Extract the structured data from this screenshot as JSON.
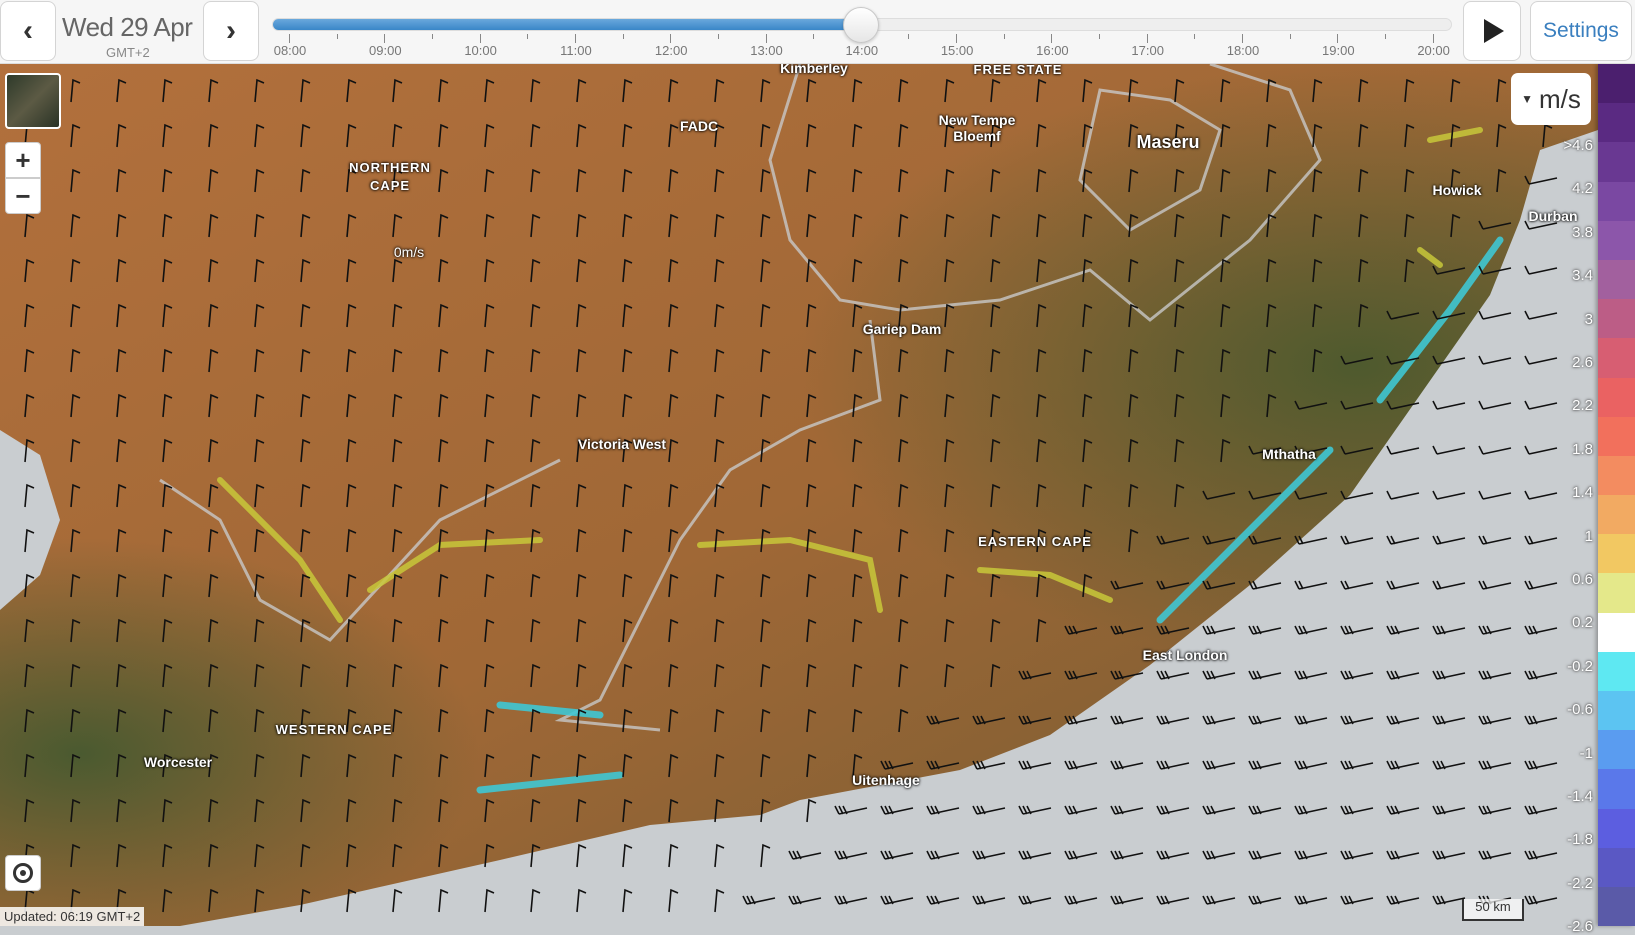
{
  "header": {
    "date": "Wed 29 Apr",
    "timezone": "GMT+2",
    "prev_icon": "chevron-left-icon",
    "next_icon": "chevron-right-icon",
    "times": [
      "08:00",
      "09:00",
      "10:00",
      "11:00",
      "12:00",
      "13:00",
      "14:00",
      "15:00",
      "16:00",
      "17:00",
      "18:00",
      "19:00",
      "20:00"
    ],
    "current_time": "14:00",
    "play_icon": "play-icon",
    "settings_label": "Settings"
  },
  "map": {
    "labels": {
      "kimberley": "Kimberley",
      "free_state": "FREE STATE",
      "fadc": "FADC",
      "northern_cape_1": "NORTHERN",
      "northern_cape_2": "CAPE",
      "new_tempe": "New Tempe",
      "bloemf": "Bloemf",
      "maseru": "Maseru",
      "howick": "Howick",
      "durban": "Durban",
      "zero": "0m/s",
      "gariep": "Gariep Dam",
      "victoria_west": "Victoria West",
      "mthatha": "Mthatha",
      "eastern_cape": "EASTERN CAPE",
      "east_london": "East London",
      "western_cape": "WESTERN CAPE",
      "worcester": "Worcester",
      "uitenhage": "Uitenhage"
    },
    "zoom_in": "+",
    "zoom_out": "−",
    "updated": "Updated: 06:19 GMT+2",
    "scale": "50 km"
  },
  "legend": {
    "unit": "m/s",
    "labels": [
      ">4.6",
      "4.2",
      "3.8",
      "3.4",
      "3",
      "2.6",
      "2.2",
      "1.8",
      "1.4",
      "1",
      "0.6",
      "0.2",
      "-0.2",
      "-0.6",
      "-1",
      "-1.4",
      "-1.8",
      "-2.2",
      "-2.6"
    ],
    "colors": [
      "#4b1f6e",
      "#5a2a82",
      "#693892",
      "#7a48a2",
      "#8c56aa",
      "#a2609e",
      "#bc5d86",
      "#d75e72",
      "#ea6262",
      "#f2705c",
      "#f38c60",
      "#f2aa62",
      "#f2c862",
      "#e4e88a",
      "#ffffff",
      "#5ee8f2",
      "#5cc4f2",
      "#5a9cf0",
      "#5a78ea",
      "#5c5ee0",
      "#5a58c4",
      "#5a5aa8"
    ]
  }
}
